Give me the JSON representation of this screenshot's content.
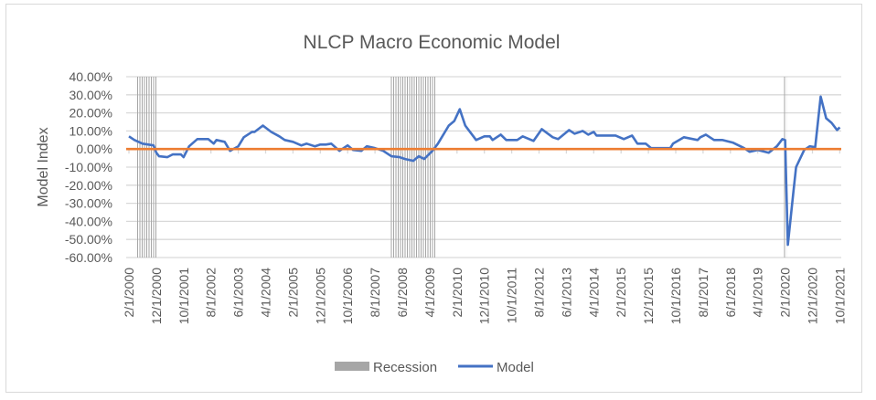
{
  "chart_data": {
    "type": "line",
    "title": "NLCP Macro Economic Model",
    "xlabel": "",
    "ylabel": "Model Index",
    "x_unit": "months since 2/1/2000",
    "xlim": [
      0,
      260
    ],
    "ylim": [
      -60,
      40
    ],
    "yticks": [
      40,
      30,
      20,
      10,
      0,
      -10,
      -20,
      -30,
      -40,
      -50,
      -60
    ],
    "ytick_labels": [
      "40.00%",
      "30.00%",
      "20.00%",
      "10.00%",
      "0.00%",
      "-10.00%",
      "-20.00%",
      "-30.00%",
      "-40.00%",
      "-50.00%",
      "-60.00%"
    ],
    "xtick_labels": [
      "2/1/2000",
      "12/1/2000",
      "10/1/2001",
      "8/1/2002",
      "6/1/2003",
      "4/1/2004",
      "2/1/2005",
      "12/1/2005",
      "10/1/2006",
      "8/1/2007",
      "6/1/2008",
      "4/1/2009",
      "2/1/2010",
      "12/1/2010",
      "10/1/2011",
      "8/1/2012",
      "6/1/2013",
      "4/1/2014",
      "2/1/2015",
      "12/1/2015",
      "10/1/2016",
      "8/1/2017",
      "6/1/2018",
      "4/1/2019",
      "2/1/2020",
      "12/1/2020",
      "10/1/2021"
    ],
    "xtick_step_months": 10,
    "grid": true,
    "legend_position": "bottom",
    "legend": [
      "Recession",
      "Model"
    ],
    "colors": {
      "model": "#4472c4",
      "zero_line": "#ed7d31",
      "recession": "#a6a6a6",
      "grid": "#d9d9d9"
    },
    "recessions": [
      [
        3,
        11
      ],
      [
        96,
        113
      ],
      [
        240,
        241
      ]
    ],
    "series": [
      {
        "name": "Model",
        "x": [
          0,
          2,
          5,
          9,
          10,
          11,
          14,
          16,
          19,
          20,
          22,
          25,
          29,
          31,
          32,
          35,
          37,
          40,
          42,
          45,
          46,
          49,
          52,
          55,
          57,
          60,
          63,
          65,
          68,
          70,
          72,
          74,
          77,
          80,
          82,
          85,
          87,
          90,
          93,
          96,
          99,
          101,
          104,
          106,
          108,
          111,
          113,
          117,
          119,
          121,
          123,
          127,
          130,
          132,
          133,
          136,
          138,
          142,
          144,
          148,
          151,
          155,
          157,
          161,
          163,
          166,
          168,
          170,
          171,
          178,
          181,
          184,
          186,
          189,
          191,
          195,
          198,
          199,
          203,
          208,
          209,
          211,
          214,
          217,
          221,
          225,
          227,
          230,
          234,
          237,
          239,
          240,
          241,
          243,
          244,
          247,
          249,
          251,
          253,
          255,
          257,
          259,
          260
        ],
        "y": [
          7,
          5,
          3,
          2,
          -2,
          -4,
          -4.5,
          -3,
          -3,
          -4.5,
          1.5,
          5.5,
          5.5,
          3,
          5,
          4,
          -1,
          1.5,
          6.5,
          9.5,
          9.5,
          13,
          9.5,
          7,
          5,
          4,
          2,
          3,
          1.5,
          2.5,
          2.5,
          3,
          -1,
          2,
          -0.5,
          -1,
          1.5,
          0.5,
          -1,
          -4,
          -4.5,
          -5.5,
          -6.5,
          -4,
          -5.5,
          -1,
          3,
          13,
          15.5,
          22,
          13,
          5,
          7,
          7,
          5,
          8,
          5,
          5,
          7,
          4.5,
          11,
          6.5,
          5.5,
          10.5,
          8.5,
          10,
          8,
          9.5,
          7.5,
          7.5,
          5.5,
          7.5,
          3,
          3,
          0.5,
          0.5,
          0.5,
          3,
          6.5,
          5,
          6.5,
          8,
          5,
          5,
          3.5,
          0.5,
          -1.5,
          -0.5,
          -2,
          1.5,
          5.5,
          5,
          -53,
          -24,
          -10,
          -0.5,
          1.5,
          1,
          29,
          17,
          14.5,
          10.5,
          12
        ]
      }
    ]
  }
}
